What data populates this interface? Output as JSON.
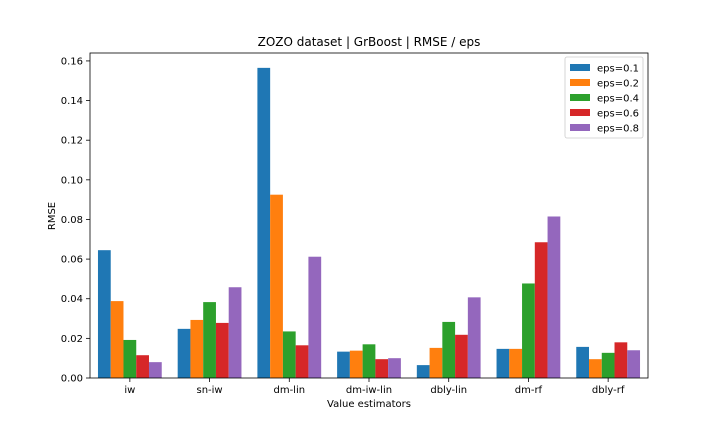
{
  "chart_data": {
    "type": "bar",
    "title": "ZOZO dataset | GrBoost | RMSE / eps",
    "xlabel": "Value estimators",
    "ylabel": "RMSE",
    "ylim": [
      0,
      0.164
    ],
    "yticks": [
      "0.00",
      "0.02",
      "0.04",
      "0.06",
      "0.08",
      "0.10",
      "0.12",
      "0.14",
      "0.16"
    ],
    "grid": false,
    "legend_position": "top-right",
    "categories": [
      "iw",
      "sn-iw",
      "dm-lin",
      "dm-iw-lin",
      "dbly-lin",
      "dm-rf",
      "dbly-rf"
    ],
    "series": [
      {
        "name": "eps=0.1",
        "color": "#1f77b4",
        "values": [
          0.0645,
          0.0248,
          0.1565,
          0.0133,
          0.0065,
          0.0147,
          0.0157
        ]
      },
      {
        "name": "eps=0.2",
        "color": "#ff7f0e",
        "values": [
          0.0388,
          0.0293,
          0.0925,
          0.0138,
          0.0152,
          0.0147,
          0.0095
        ]
      },
      {
        "name": "eps=0.4",
        "color": "#2ca02c",
        "values": [
          0.0192,
          0.0383,
          0.0235,
          0.017,
          0.0283,
          0.0477,
          0.0127
        ]
      },
      {
        "name": "eps=0.6",
        "color": "#d62728",
        "values": [
          0.0115,
          0.0278,
          0.0165,
          0.0095,
          0.0218,
          0.0685,
          0.018
        ]
      },
      {
        "name": "eps=0.8",
        "color": "#9467bd",
        "values": [
          0.008,
          0.0458,
          0.0612,
          0.01,
          0.0407,
          0.0815,
          0.014
        ]
      }
    ]
  }
}
